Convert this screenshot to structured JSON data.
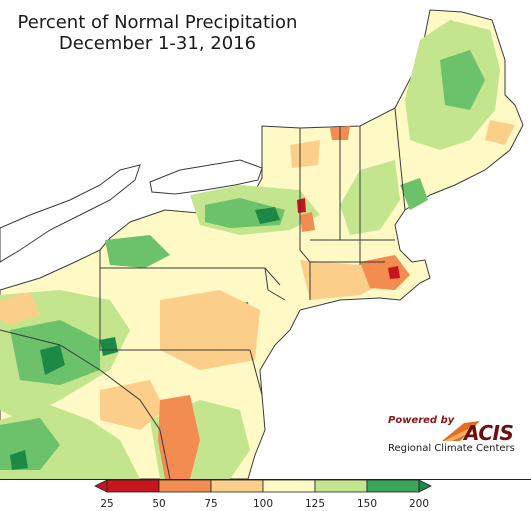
{
  "map": {
    "title_line1": "Percent of Normal Precipitation",
    "title_line2": "December 1-31, 2016",
    "region": "Northeastern United States",
    "colors": {
      "water": "#ffffff",
      "very_dry": "#c8141e",
      "dry": "#f28c50",
      "below": "#fbcf8a",
      "near": "#fff9c6",
      "above": "#c3e58d",
      "wet": "#6cc26a",
      "very_wet": "#1c8a46",
      "border": "#3a3a3a"
    }
  },
  "branding": {
    "powered_by": "Powered by",
    "logo_text": "ACIS",
    "org_name": "Regional Climate Centers"
  },
  "legend": {
    "ticks": [
      "25",
      "50",
      "75",
      "100",
      "125",
      "150",
      "200"
    ],
    "bins": [
      {
        "color": "#c8141e"
      },
      {
        "color": "#f28c50"
      },
      {
        "color": "#fbcf8a"
      },
      {
        "color": "#fff9c6"
      },
      {
        "color": "#c3e58d"
      },
      {
        "color": "#3aa65a"
      }
    ],
    "low_arrow_color": "#c8141e",
    "high_arrow_color": "#1c8a46"
  }
}
